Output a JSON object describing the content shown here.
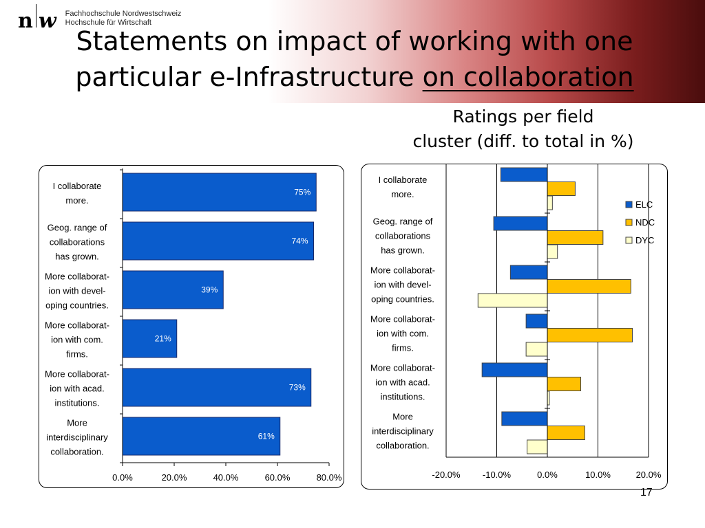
{
  "header": {
    "logo_mark_left": "n",
    "logo_mark_right": "w",
    "logo_line1": "Fachhochschule Nordwestschweiz",
    "logo_line2": "Hochschule für Wirtschaft",
    "title_line1": "Statements on impact of working with one",
    "title_line2_plain": "particular e-Infrastructure ",
    "title_line2_underlined": "on collaboration",
    "subtitle_line1": "Ratings per field",
    "subtitle_line2": "cluster (diff. to total in %)"
  },
  "page_number": "17",
  "colors": {
    "elc": "#0a5ccc",
    "ndc": "#ffc000",
    "dyc": "#ffffcc",
    "header_dark": "#5a1010"
  },
  "chart_data": [
    {
      "type": "bar",
      "orientation": "horizontal",
      "categories": [
        [
          "I collaborate",
          "more."
        ],
        [
          "Geog. range of",
          "collaborations",
          "has grown."
        ],
        [
          "More collaborat-",
          "ion with devel-",
          "oping countries."
        ],
        [
          "More collaborat-",
          "ion with com.",
          "firms."
        ],
        [
          "More collaborat-",
          "ion with acad.",
          "institutions."
        ],
        [
          "More",
          "interdisciplinary",
          "collaboration."
        ]
      ],
      "values": [
        75,
        74,
        39,
        21,
        73,
        61
      ],
      "data_labels": [
        "75%",
        "74%",
        "39%",
        "21%",
        "73%",
        "61%"
      ],
      "xlim": [
        0,
        80
      ],
      "x_ticks": [
        "0.0%",
        "20.0%",
        "40.0%",
        "60.0%",
        "80.0%"
      ],
      "color": "#0a5ccc"
    },
    {
      "type": "bar",
      "orientation": "horizontal",
      "categories": [
        [
          "I collaborate",
          "more."
        ],
        [
          "Geog. range of",
          "collaborations",
          "has grown."
        ],
        [
          "More collaborat-",
          "ion with devel-",
          "oping countries."
        ],
        [
          "More collaborat-",
          "ion with com.",
          "firms."
        ],
        [
          "More collaborat-",
          "ion with acad.",
          "institutions."
        ],
        [
          "More",
          "interdisciplinary",
          "collaboration."
        ]
      ],
      "series": [
        {
          "name": "ELC",
          "color": "#0a5ccc",
          "values": [
            -9.2,
            -10.6,
            -7.3,
            -4.2,
            -12.9,
            -9.0
          ]
        },
        {
          "name": "NDC",
          "color": "#ffc000",
          "values": [
            5.5,
            11.0,
            16.5,
            16.8,
            6.6,
            7.4
          ]
        },
        {
          "name": "DYC",
          "color": "#ffffcc",
          "values": [
            1.0,
            2.0,
            -13.7,
            -4.2,
            0.4,
            -4.0
          ]
        }
      ],
      "xlim": [
        -20,
        20
      ],
      "x_ticks": [
        "-20.0%",
        "-10.0%",
        "0.0%",
        "10.0%",
        "20.0%"
      ],
      "grid": true,
      "legend_position": "top-right"
    }
  ]
}
